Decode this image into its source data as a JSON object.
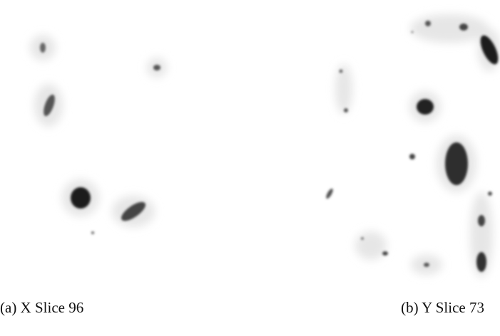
{
  "figure": {
    "panels": [
      {
        "caption": "(a) X Slice 96"
      },
      {
        "caption": "(b) Y Slice 73"
      }
    ]
  }
}
